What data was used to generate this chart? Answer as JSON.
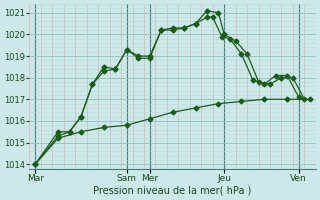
{
  "xlabel": "Pression niveau de la mer( hPa )",
  "background_color": "#cce8e8",
  "grid_major_color": "#99c4c4",
  "grid_minor_color": "#bbdada",
  "line_color": "#1a5c1a",
  "ylim": [
    1013.8,
    1021.4
  ],
  "xlim": [
    0,
    25
  ],
  "yticks": [
    1014,
    1015,
    1016,
    1017,
    1018,
    1019,
    1020,
    1021
  ],
  "day_labels": [
    "Mar",
    "Sam",
    "Mer",
    "Jeu",
    "Ven"
  ],
  "day_positions": [
    0.5,
    8.5,
    10.5,
    17.0,
    23.5
  ],
  "vline_positions": [
    0.5,
    8.5,
    10.5,
    17.0,
    23.5
  ],
  "series1": {
    "x": [
      0.5,
      2.5,
      3.5,
      4.5,
      5.5,
      6.5,
      7.5,
      8.5,
      9.5,
      10.5,
      11.5,
      12.5,
      13.5,
      14.5,
      15.5,
      16.5,
      17.0,
      18.0,
      19.0,
      20.0,
      21.0,
      22.0,
      23.0,
      24.0
    ],
    "y": [
      1014.0,
      1015.3,
      1015.5,
      1016.2,
      1017.7,
      1018.5,
      1018.4,
      1019.3,
      1019.0,
      1019.0,
      1020.2,
      1020.2,
      1020.3,
      1020.5,
      1021.1,
      1021.0,
      1020.0,
      1019.7,
      1019.1,
      1017.8,
      1017.7,
      1018.0,
      1018.0,
      1017.0
    ]
  },
  "series2": {
    "x": [
      0.5,
      2.5,
      3.5,
      4.5,
      5.5,
      6.5,
      7.5,
      8.5,
      9.5,
      10.5,
      11.5,
      12.5,
      13.5,
      14.5,
      15.5,
      16.0,
      16.8,
      17.5,
      18.5,
      19.5,
      20.5,
      21.5,
      22.5,
      23.5
    ],
    "y": [
      1014.0,
      1015.5,
      1015.5,
      1016.2,
      1017.7,
      1018.3,
      1018.4,
      1019.3,
      1018.9,
      1018.9,
      1020.2,
      1020.3,
      1020.3,
      1020.5,
      1020.8,
      1020.8,
      1019.9,
      1019.8,
      1019.1,
      1017.9,
      1017.7,
      1018.1,
      1018.1,
      1017.1
    ]
  },
  "series3": {
    "x": [
      0.5,
      2.5,
      4.5,
      6.5,
      8.5,
      10.5,
      12.5,
      14.5,
      16.5,
      18.5,
      20.5,
      22.5,
      24.5
    ],
    "y": [
      1014.0,
      1015.2,
      1015.5,
      1015.7,
      1015.8,
      1016.1,
      1016.4,
      1016.6,
      1016.8,
      1016.9,
      1017.0,
      1017.0,
      1017.0
    ]
  }
}
